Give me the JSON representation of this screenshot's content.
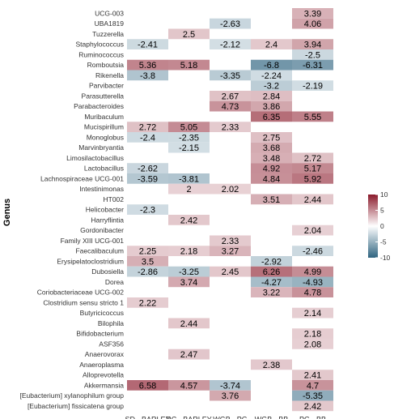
{
  "chart_data": {
    "type": "heatmap",
    "title": "",
    "xlabel": "",
    "ylabel": "Genus",
    "columns": [
      "SD - BARLEY",
      "RC - BARLEY",
      "WGB - PG",
      "WGB - BB",
      "PG - BB"
    ],
    "rows": [
      "UCG-003",
      "UBA1819",
      "Tuzzerella",
      "Staphylococcus",
      "Ruminococcus",
      "Romboutsia",
      "Rikenella",
      "Parvibacter",
      "Parasutterella",
      "Parabacteroides",
      "Muribaculum",
      "Mucispirillum",
      "Monoglobus",
      "Marvinbryantia",
      "Limosilactobacillus",
      "Lactobacillus",
      "Lachnospiraceae UCG-001",
      "Intestinimonas",
      "HT002",
      "Helicobacter",
      "Harryflintia",
      "Gordonibacter",
      "Family XIII UCG-001",
      "Faecalibaculum",
      "Erysipelatoclostridium",
      "Dubosiella",
      "Dorea",
      "Coriobacteriaceae UCG-002",
      "Clostridium sensu stricto 1",
      "Butyricicoccus",
      "Bilophila",
      "Bifidobacterium",
      "ASF356",
      "Anaerovorax",
      "Anaeroplasma",
      "Alloprevotella",
      "Akkermansia",
      "[Eubacterium] xylanophilum group",
      "[Eubacterium] fissicatena group"
    ],
    "values": [
      [
        null,
        null,
        null,
        null,
        3.39
      ],
      [
        null,
        null,
        -2.63,
        null,
        4.06
      ],
      [
        null,
        2.5,
        null,
        null,
        null
      ],
      [
        -2.41,
        null,
        -2.12,
        2.4,
        3.94
      ],
      [
        null,
        null,
        null,
        null,
        -2.5
      ],
      [
        5.36,
        5.18,
        null,
        -6.8,
        -6.31
      ],
      [
        -3.8,
        null,
        -3.35,
        -2.24,
        null
      ],
      [
        null,
        null,
        null,
        -3.2,
        -2.19
      ],
      [
        null,
        null,
        2.67,
        2.84,
        null
      ],
      [
        null,
        null,
        4.73,
        3.86,
        null
      ],
      [
        null,
        null,
        null,
        6.35,
        5.55
      ],
      [
        2.72,
        5.05,
        2.33,
        null,
        null
      ],
      [
        -2.4,
        -2.35,
        null,
        2.75,
        null
      ],
      [
        null,
        -2.15,
        null,
        3.68,
        null
      ],
      [
        null,
        null,
        null,
        3.48,
        2.72
      ],
      [
        -2.62,
        null,
        null,
        4.92,
        5.17
      ],
      [
        -3.59,
        -3.81,
        null,
        4.84,
        5.92
      ],
      [
        null,
        2,
        2.02,
        null,
        null
      ],
      [
        null,
        null,
        null,
        3.51,
        2.44
      ],
      [
        -2.3,
        null,
        null,
        null,
        null
      ],
      [
        null,
        2.42,
        null,
        null,
        null
      ],
      [
        null,
        null,
        null,
        null,
        2.04
      ],
      [
        null,
        null,
        2.33,
        null,
        null
      ],
      [
        2.25,
        2.18,
        3.27,
        null,
        -2.46
      ],
      [
        3.5,
        null,
        null,
        -2.92,
        null
      ],
      [
        -2.86,
        -3.25,
        2.45,
        6.26,
        4.99
      ],
      [
        null,
        3.74,
        null,
        -4.27,
        -4.93
      ],
      [
        null,
        null,
        null,
        3.22,
        4.78
      ],
      [
        2.22,
        null,
        null,
        null,
        null
      ],
      [
        null,
        null,
        null,
        null,
        2.14
      ],
      [
        null,
        2.44,
        null,
        null,
        null
      ],
      [
        null,
        null,
        null,
        null,
        2.18
      ],
      [
        null,
        null,
        null,
        null,
        2.08
      ],
      [
        null,
        2.47,
        null,
        null,
        null
      ],
      [
        null,
        null,
        null,
        2.38,
        null
      ],
      [
        null,
        null,
        null,
        null,
        2.41
      ],
      [
        6.58,
        4.57,
        -3.74,
        null,
        4.7
      ],
      [
        null,
        null,
        3.76,
        null,
        -5.35
      ],
      [
        null,
        null,
        null,
        null,
        2.42
      ]
    ],
    "colorbar": {
      "ticks": [
        10,
        5,
        0,
        -5,
        -10
      ],
      "range": [
        -10,
        10
      ],
      "low_color": "#2f6480",
      "mid_color": "#ffffff",
      "high_color": "#8b1a2b",
      "placement": "right"
    },
    "grid": false
  }
}
